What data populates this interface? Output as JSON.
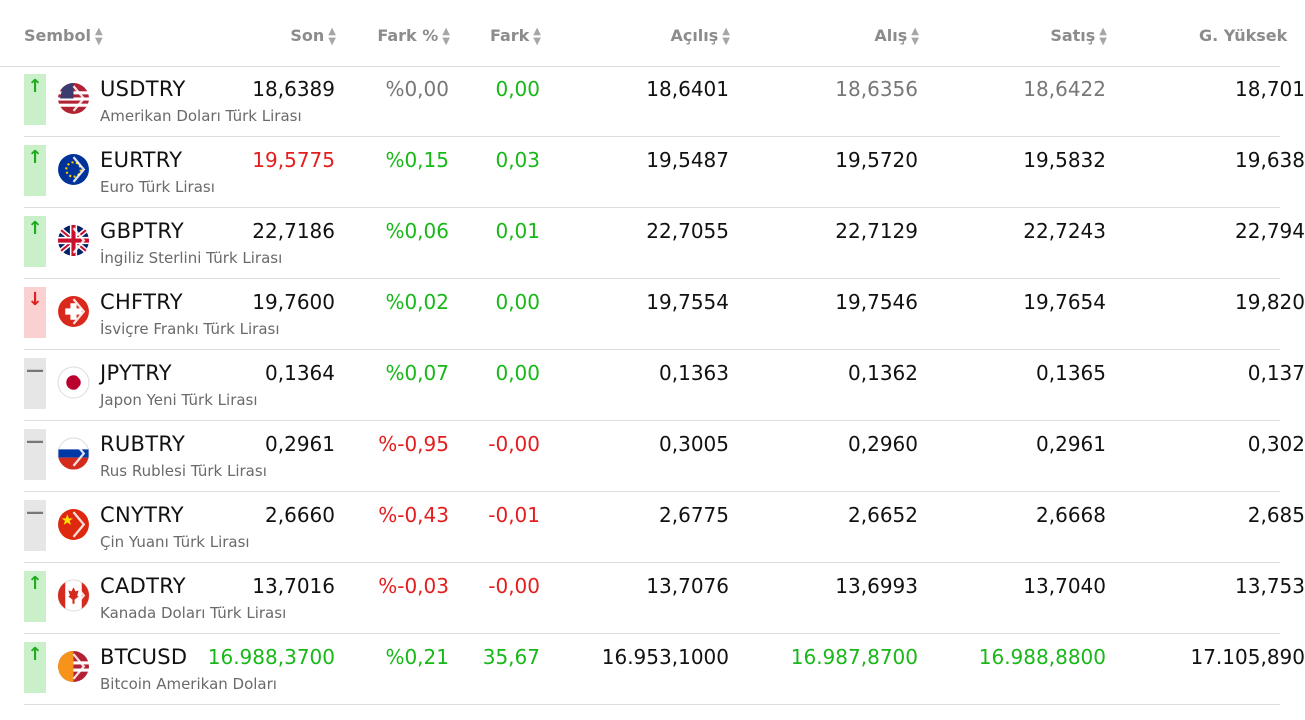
{
  "headers": {
    "sembol": "Sembol",
    "son": "Son",
    "fark_yuzde": "Fark %",
    "fark": "Fark",
    "acilis": "Açılış",
    "alis": "Alış",
    "satis": "Satış",
    "g_yuksek": "G. Yüksek"
  },
  "icons": {
    "sort": "sort-arrows-icon",
    "up": "arrow-up-icon",
    "down": "arrow-down-icon",
    "flat": "dash-icon"
  },
  "colors": {
    "green": "#18b818",
    "red": "#e41e1e",
    "grey": "#777777",
    "dark": "#111111",
    "up_bg": "#c9f0c9",
    "down_bg": "#fbd0d0",
    "flat_bg": "#e6e6e6"
  },
  "rows": [
    {
      "symbol": "USDTRY",
      "desc": "Amerikan Doları Türk Lirası",
      "dir": "up",
      "flag": "us-flag-icon",
      "son": "18,6389",
      "son_color": "dark",
      "fark_pct": "%0,00",
      "fark_pct_color": "grey",
      "fark": "0,00",
      "fark_color": "green",
      "acilis": "18,6401",
      "alis": "18,6356",
      "alis_color": "grey",
      "satis": "18,6422",
      "satis_color": "grey",
      "g_yuksek": "18,701"
    },
    {
      "symbol": "EURTRY",
      "desc": "Euro Türk Lirası",
      "dir": "up",
      "flag": "eu-flag-icon",
      "son": "19,5775",
      "son_color": "red",
      "fark_pct": "%0,15",
      "fark_pct_color": "green",
      "fark": "0,03",
      "fark_color": "green",
      "acilis": "19,5487",
      "alis": "19,5720",
      "alis_color": "dark",
      "satis": "19,5832",
      "satis_color": "dark",
      "g_yuksek": "19,638"
    },
    {
      "symbol": "GBPTRY",
      "desc": "İngiliz Sterlini Türk Lirası",
      "dir": "up",
      "flag": "gb-flag-icon",
      "son": "22,7186",
      "son_color": "dark",
      "fark_pct": "%0,06",
      "fark_pct_color": "green",
      "fark": "0,01",
      "fark_color": "green",
      "acilis": "22,7055",
      "alis": "22,7129",
      "alis_color": "dark",
      "satis": "22,7243",
      "satis_color": "dark",
      "g_yuksek": "22,794"
    },
    {
      "symbol": "CHFTRY",
      "desc": "İsviçre Frankı Türk Lirası",
      "dir": "down",
      "flag": "ch-flag-icon",
      "son": "19,7600",
      "son_color": "dark",
      "fark_pct": "%0,02",
      "fark_pct_color": "green",
      "fark": "0,00",
      "fark_color": "green",
      "acilis": "19,7554",
      "alis": "19,7546",
      "alis_color": "dark",
      "satis": "19,7654",
      "satis_color": "dark",
      "g_yuksek": "19,820"
    },
    {
      "symbol": "JPYTRY",
      "desc": "Japon Yeni Türk Lirası",
      "dir": "flat",
      "flag": "jp-flag-icon",
      "son": "0,1364",
      "son_color": "dark",
      "fark_pct": "%0,07",
      "fark_pct_color": "green",
      "fark": "0,00",
      "fark_color": "green",
      "acilis": "0,1363",
      "alis": "0,1362",
      "alis_color": "dark",
      "satis": "0,1365",
      "satis_color": "dark",
      "g_yuksek": "0,137"
    },
    {
      "symbol": "RUBTRY",
      "desc": "Rus Rublesi Türk Lirası",
      "dir": "flat",
      "flag": "ru-flag-icon",
      "son": "0,2961",
      "son_color": "dark",
      "fark_pct": "%-0,95",
      "fark_pct_color": "red",
      "fark": "-0,00",
      "fark_color": "red",
      "acilis": "0,3005",
      "alis": "0,2960",
      "alis_color": "dark",
      "satis": "0,2961",
      "satis_color": "dark",
      "g_yuksek": "0,302"
    },
    {
      "symbol": "CNYTRY",
      "desc": "Çin Yuanı Türk Lirası",
      "dir": "flat",
      "flag": "cn-flag-icon",
      "son": "2,6660",
      "son_color": "dark",
      "fark_pct": "%-0,43",
      "fark_pct_color": "red",
      "fark": "-0,01",
      "fark_color": "red",
      "acilis": "2,6775",
      "alis": "2,6652",
      "alis_color": "dark",
      "satis": "2,6668",
      "satis_color": "dark",
      "g_yuksek": "2,685"
    },
    {
      "symbol": "CADTRY",
      "desc": "Kanada Doları Türk Lirası",
      "dir": "up",
      "flag": "ca-flag-icon",
      "son": "13,7016",
      "son_color": "dark",
      "fark_pct": "%-0,03",
      "fark_pct_color": "red",
      "fark": "-0,00",
      "fark_color": "red",
      "acilis": "13,7076",
      "alis": "13,6993",
      "alis_color": "dark",
      "satis": "13,7040",
      "satis_color": "dark",
      "g_yuksek": "13,753"
    },
    {
      "symbol": "BTCUSD",
      "desc": "Bitcoin Amerikan Doları",
      "dir": "up",
      "flag": "btc-us-flag-icon",
      "son": "16.988,3700",
      "son_color": "green",
      "fark_pct": "%0,21",
      "fark_pct_color": "green",
      "fark": "35,67",
      "fark_color": "green",
      "acilis": "16.953,1000",
      "alis": "16.987,8700",
      "alis_color": "green",
      "satis": "16.988,8800",
      "satis_color": "green",
      "g_yuksek": "17.105,890"
    }
  ]
}
